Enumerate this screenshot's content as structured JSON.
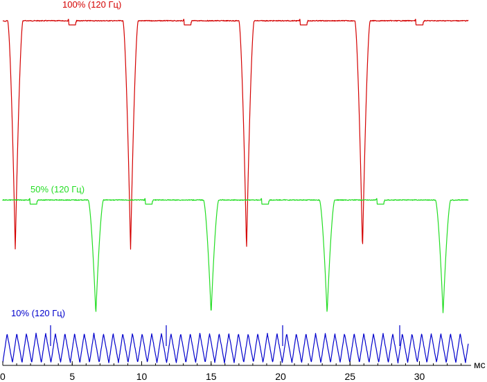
{
  "chart_data": {
    "type": "line",
    "xlabel": "мс",
    "x_ticks": [
      0,
      5,
      10,
      15,
      20,
      25,
      30
    ],
    "xlim": [
      0,
      35
    ],
    "grid": false,
    "legend": "none",
    "series": [
      {
        "name": "100% (120 Гц)",
        "color": "#d40000",
        "period_ms": 8.333,
        "dip_centers_ms": [
          0.9,
          9.2,
          17.55,
          25.9
        ],
        "notch_centers_ms": [
          5.0,
          13.3,
          21.65,
          30.0
        ]
      },
      {
        "name": "50% (120 Гц)",
        "color": "#22dd22",
        "period_ms": 8.333,
        "dip_centers_ms": [
          6.7,
          15.0,
          23.35,
          31.7
        ],
        "notch_centers_ms": [
          2.2,
          10.5,
          18.9,
          27.2
        ]
      },
      {
        "name": "10% (120 Гц)",
        "color": "#0000cc",
        "period_ms": 0.694,
        "note_waveform": "sawtooth ripple"
      }
    ]
  }
}
